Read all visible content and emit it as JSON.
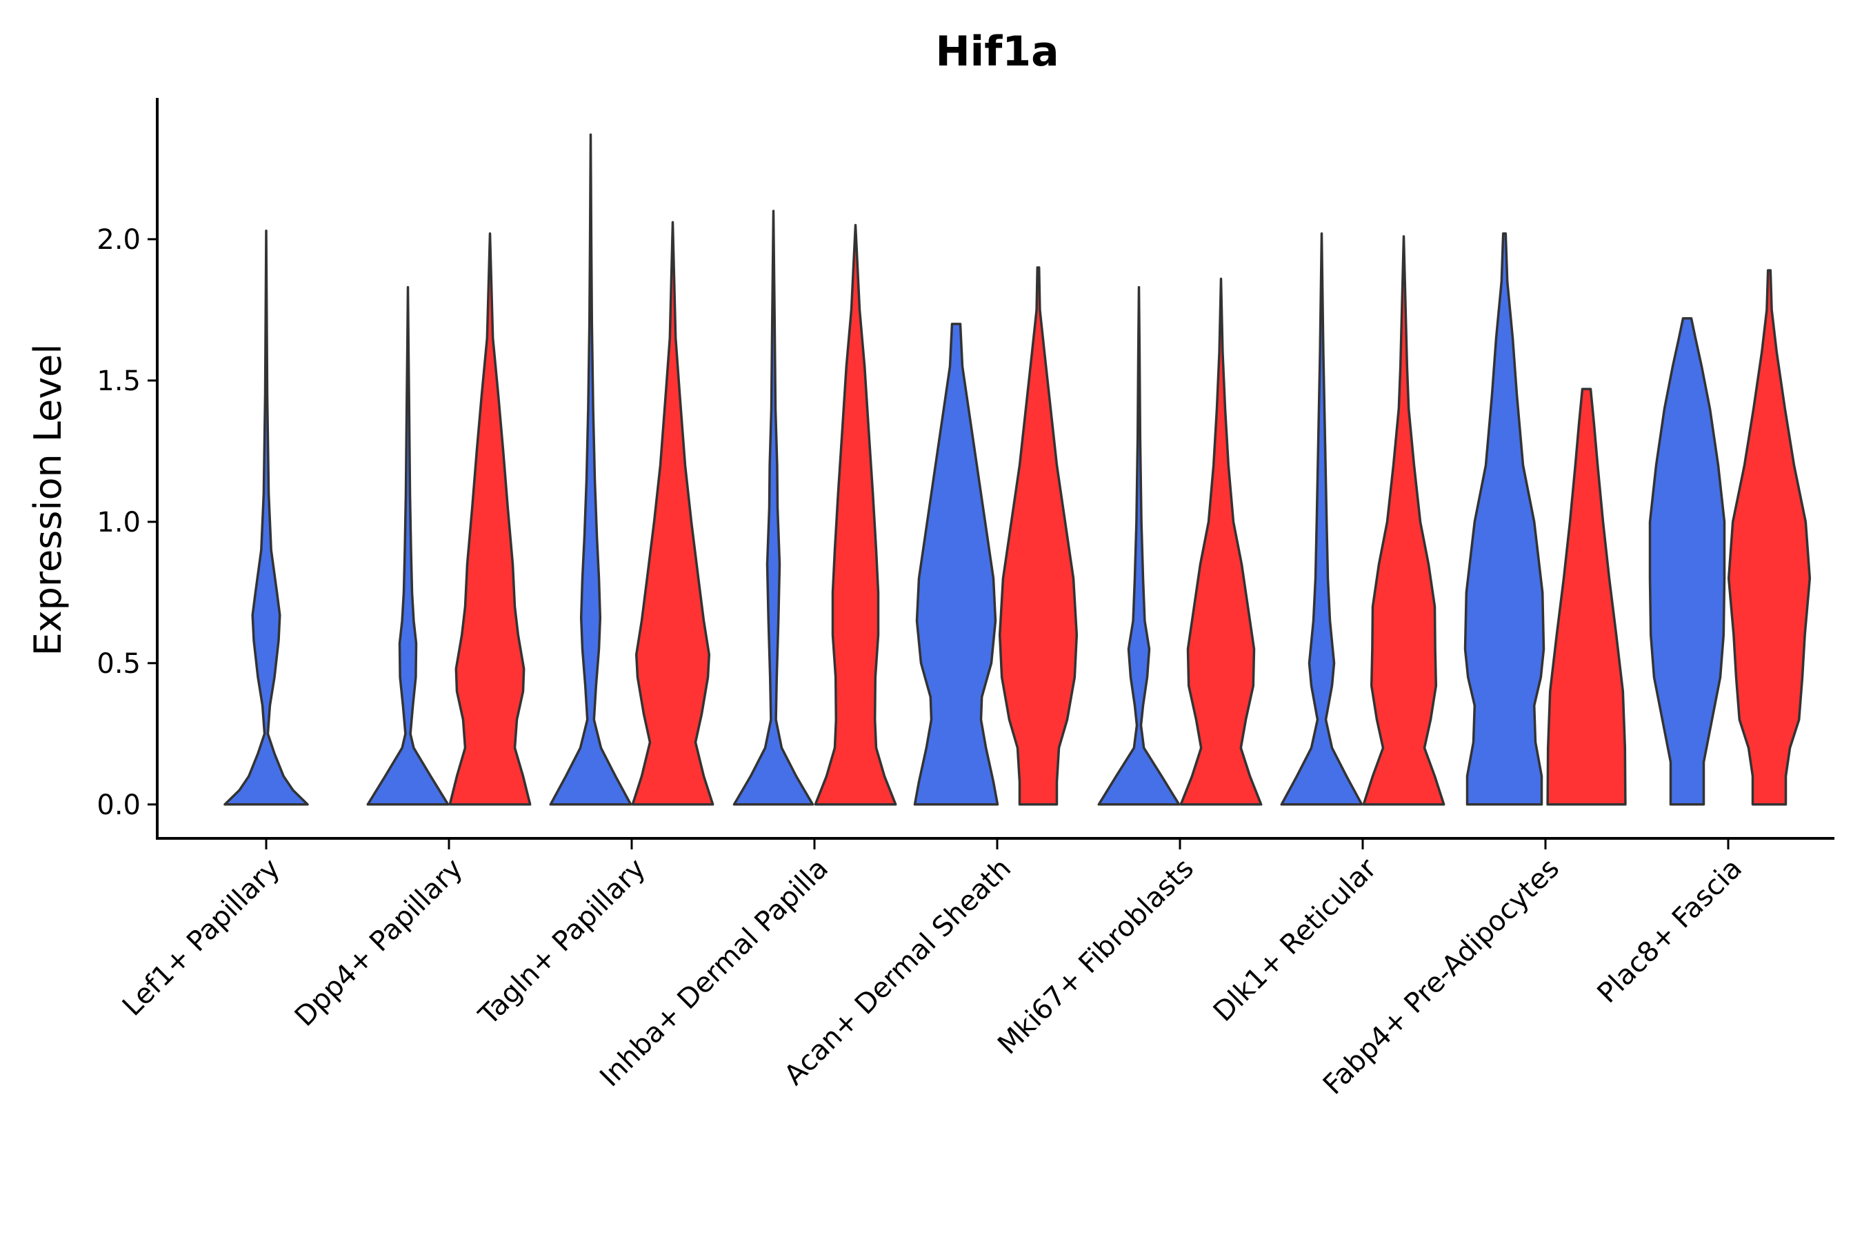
{
  "chart_data": {
    "type": "violin",
    "title": "Hif1a",
    "xlabel": "",
    "ylabel": "Expression Level",
    "ylim": [
      -0.12,
      2.5
    ],
    "yticks": [
      0.0,
      0.5,
      1.0,
      1.5,
      2.0
    ],
    "ytick_labels": [
      "0.0",
      "0.5",
      "1.0",
      "1.5",
      "2.0"
    ],
    "grid": false,
    "legend": "none",
    "colors": {
      "group1": "#4570e8",
      "group2": "#ff3333",
      "outline": "#333333"
    },
    "categories": [
      "Lef1+ Papillary",
      "Dpp4+ Papillary",
      "Tagln+ Papillary",
      "Inhba+ Dermal Papilla",
      "Acan+ Dermal Sheath",
      "Mki67+ Fibroblasts",
      "Dlk1+ Reticular",
      "Fabp4+ Pre-Adipocytes",
      "Plac8+ Fascia"
    ],
    "series": [
      {
        "name": "group1",
        "color": "#4570e8",
        "violins": [
          {
            "category": "Lef1+ Papillary",
            "max": 2.03,
            "profile": [
              [
                0.0,
                1.0
              ],
              [
                0.05,
                0.65
              ],
              [
                0.1,
                0.42
              ],
              [
                0.18,
                0.2
              ],
              [
                0.25,
                0.04
              ],
              [
                0.35,
                0.09
              ],
              [
                0.45,
                0.2
              ],
              [
                0.58,
                0.3
              ],
              [
                0.67,
                0.33
              ],
              [
                0.75,
                0.26
              ],
              [
                0.9,
                0.12
              ],
              [
                1.1,
                0.06
              ],
              [
                1.45,
                0.025
              ],
              [
                1.8,
                0.01
              ],
              [
                2.03,
                0.0
              ]
            ]
          },
          {
            "category": "Dpp4+ Papillary",
            "max": 1.83,
            "profile": [
              [
                0.0,
                0.97
              ],
              [
                0.1,
                0.55
              ],
              [
                0.2,
                0.14
              ],
              [
                0.25,
                0.06
              ],
              [
                0.35,
                0.12
              ],
              [
                0.45,
                0.19
              ],
              [
                0.57,
                0.2
              ],
              [
                0.65,
                0.14
              ],
              [
                0.75,
                0.1
              ],
              [
                0.9,
                0.075
              ],
              [
                1.1,
                0.05
              ],
              [
                1.4,
                0.03
              ],
              [
                1.6,
                0.015
              ],
              [
                1.83,
                0.0
              ]
            ]
          },
          {
            "category": "Tagln+ Papillary",
            "max": 2.37,
            "profile": [
              [
                0.0,
                0.97
              ],
              [
                0.1,
                0.6
              ],
              [
                0.2,
                0.25
              ],
              [
                0.3,
                0.08
              ],
              [
                0.42,
                0.13
              ],
              [
                0.55,
                0.2
              ],
              [
                0.66,
                0.23
              ],
              [
                0.8,
                0.2
              ],
              [
                0.95,
                0.15
              ],
              [
                1.15,
                0.1
              ],
              [
                1.4,
                0.06
              ],
              [
                1.7,
                0.03
              ],
              [
                2.0,
                0.015
              ],
              [
                2.37,
                0.0
              ]
            ]
          },
          {
            "category": "Inhba+ Dermal Papilla",
            "max": 2.1,
            "profile": [
              [
                0.0,
                0.95
              ],
              [
                0.1,
                0.55
              ],
              [
                0.2,
                0.2
              ],
              [
                0.3,
                0.06
              ],
              [
                0.45,
                0.08
              ],
              [
                0.65,
                0.12
              ],
              [
                0.85,
                0.15
              ],
              [
                1.05,
                0.1
              ],
              [
                1.2,
                0.09
              ],
              [
                1.4,
                0.05
              ],
              [
                1.7,
                0.03
              ],
              [
                2.1,
                0.0
              ]
            ]
          },
          {
            "category": "Acan+ Dermal Sheath",
            "max": 1.7,
            "profile": [
              [
                0.0,
                1.0
              ],
              [
                0.08,
                0.9
              ],
              [
                0.2,
                0.72
              ],
              [
                0.3,
                0.6
              ],
              [
                0.38,
                0.62
              ],
              [
                0.5,
                0.85
              ],
              [
                0.65,
                0.95
              ],
              [
                0.8,
                0.9
              ],
              [
                1.0,
                0.7
              ],
              [
                1.2,
                0.5
              ],
              [
                1.4,
                0.3
              ],
              [
                1.55,
                0.15
              ],
              [
                1.7,
                0.1
              ]
            ]
          },
          {
            "category": "Mki67+ Fibroblasts",
            "max": 1.83,
            "profile": [
              [
                0.0,
                0.97
              ],
              [
                0.1,
                0.55
              ],
              [
                0.2,
                0.12
              ],
              [
                0.28,
                0.05
              ],
              [
                0.35,
                0.1
              ],
              [
                0.45,
                0.2
              ],
              [
                0.55,
                0.25
              ],
              [
                0.65,
                0.14
              ],
              [
                0.8,
                0.1
              ],
              [
                1.0,
                0.06
              ],
              [
                1.3,
                0.03
              ],
              [
                1.6,
                0.015
              ],
              [
                1.83,
                0.0
              ]
            ]
          },
          {
            "category": "Dlk1+ Reticular",
            "max": 2.02,
            "profile": [
              [
                0.0,
                0.97
              ],
              [
                0.1,
                0.6
              ],
              [
                0.2,
                0.25
              ],
              [
                0.3,
                0.1
              ],
              [
                0.42,
                0.25
              ],
              [
                0.5,
                0.3
              ],
              [
                0.65,
                0.2
              ],
              [
                0.8,
                0.15
              ],
              [
                1.0,
                0.12
              ],
              [
                1.3,
                0.08
              ],
              [
                1.6,
                0.04
              ],
              [
                2.02,
                0.0
              ]
            ]
          },
          {
            "category": "Fabp4+ Pre-Adipocytes",
            "max": 2.02,
            "profile": [
              [
                0.0,
                0.9
              ],
              [
                0.1,
                0.9
              ],
              [
                0.22,
                0.75
              ],
              [
                0.35,
                0.72
              ],
              [
                0.45,
                0.88
              ],
              [
                0.55,
                0.95
              ],
              [
                0.75,
                0.92
              ],
              [
                1.0,
                0.72
              ],
              [
                1.2,
                0.45
              ],
              [
                1.45,
                0.3
              ],
              [
                1.65,
                0.2
              ],
              [
                1.85,
                0.07
              ],
              [
                2.02,
                0.03
              ]
            ]
          },
          {
            "category": "Plac8+ Fascia",
            "max": 1.72,
            "profile": [
              [
                0.0,
                0.4
              ],
              [
                0.15,
                0.4
              ],
              [
                0.3,
                0.6
              ],
              [
                0.45,
                0.8
              ],
              [
                0.6,
                0.88
              ],
              [
                0.8,
                0.9
              ],
              [
                1.0,
                0.9
              ],
              [
                1.2,
                0.75
              ],
              [
                1.4,
                0.55
              ],
              [
                1.55,
                0.35
              ],
              [
                1.65,
                0.2
              ],
              [
                1.72,
                0.1
              ]
            ]
          }
        ]
      },
      {
        "name": "group2",
        "color": "#ff3333",
        "violins": [
          {
            "category": "Dpp4+ Papillary",
            "max": 2.02,
            "profile": [
              [
                0.0,
                0.97
              ],
              [
                0.1,
                0.8
              ],
              [
                0.2,
                0.6
              ],
              [
                0.3,
                0.65
              ],
              [
                0.4,
                0.8
              ],
              [
                0.48,
                0.82
              ],
              [
                0.6,
                0.68
              ],
              [
                0.7,
                0.6
              ],
              [
                0.85,
                0.55
              ],
              [
                1.05,
                0.43
              ],
              [
                1.25,
                0.32
              ],
              [
                1.45,
                0.2
              ],
              [
                1.65,
                0.07
              ],
              [
                2.02,
                0.0
              ]
            ]
          },
          {
            "category": "Tagln+ Papillary",
            "max": 2.06,
            "profile": [
              [
                0.0,
                0.97
              ],
              [
                0.1,
                0.75
              ],
              [
                0.22,
                0.55
              ],
              [
                0.32,
                0.7
              ],
              [
                0.45,
                0.85
              ],
              [
                0.53,
                0.88
              ],
              [
                0.65,
                0.75
              ],
              [
                0.8,
                0.62
              ],
              [
                1.0,
                0.45
              ],
              [
                1.2,
                0.3
              ],
              [
                1.45,
                0.17
              ],
              [
                1.65,
                0.07
              ],
              [
                2.06,
                0.0
              ]
            ]
          },
          {
            "category": "Inhba+ Dermal Papilla",
            "max": 2.05,
            "profile": [
              [
                0.0,
                0.97
              ],
              [
                0.1,
                0.7
              ],
              [
                0.2,
                0.5
              ],
              [
                0.3,
                0.47
              ],
              [
                0.45,
                0.48
              ],
              [
                0.6,
                0.55
              ],
              [
                0.75,
                0.55
              ],
              [
                0.9,
                0.5
              ],
              [
                1.1,
                0.42
              ],
              [
                1.3,
                0.33
              ],
              [
                1.55,
                0.22
              ],
              [
                1.75,
                0.1
              ],
              [
                2.05,
                0.0
              ]
            ]
          },
          {
            "category": "Acan+ Dermal Sheath",
            "max": 1.9,
            "profile": [
              [
                0.0,
                0.45
              ],
              [
                0.08,
                0.45
              ],
              [
                0.2,
                0.5
              ],
              [
                0.3,
                0.7
              ],
              [
                0.45,
                0.88
              ],
              [
                0.6,
                0.93
              ],
              [
                0.8,
                0.85
              ],
              [
                1.0,
                0.65
              ],
              [
                1.2,
                0.45
              ],
              [
                1.4,
                0.3
              ],
              [
                1.6,
                0.15
              ],
              [
                1.75,
                0.04
              ],
              [
                1.9,
                0.02
              ]
            ]
          },
          {
            "category": "Mki67+ Fibroblasts",
            "max": 1.86,
            "profile": [
              [
                0.0,
                0.97
              ],
              [
                0.1,
                0.7
              ],
              [
                0.2,
                0.48
              ],
              [
                0.3,
                0.6
              ],
              [
                0.42,
                0.78
              ],
              [
                0.55,
                0.8
              ],
              [
                0.7,
                0.65
              ],
              [
                0.85,
                0.5
              ],
              [
                1.0,
                0.3
              ],
              [
                1.2,
                0.18
              ],
              [
                1.4,
                0.1
              ],
              [
                1.6,
                0.04
              ],
              [
                1.86,
                0.0
              ]
            ]
          },
          {
            "category": "Dlk1+ Reticular",
            "max": 2.01,
            "profile": [
              [
                0.0,
                0.97
              ],
              [
                0.1,
                0.75
              ],
              [
                0.2,
                0.5
              ],
              [
                0.3,
                0.65
              ],
              [
                0.42,
                0.78
              ],
              [
                0.55,
                0.76
              ],
              [
                0.7,
                0.75
              ],
              [
                0.85,
                0.6
              ],
              [
                1.0,
                0.4
              ],
              [
                1.2,
                0.25
              ],
              [
                1.4,
                0.12
              ],
              [
                1.55,
                0.08
              ],
              [
                2.01,
                0.0
              ]
            ]
          },
          {
            "category": "Fabp4+ Pre-Adipocytes",
            "max": 1.47,
            "profile": [
              [
                0.0,
                0.94
              ],
              [
                0.2,
                0.93
              ],
              [
                0.4,
                0.88
              ],
              [
                0.6,
                0.72
              ],
              [
                0.8,
                0.55
              ],
              [
                1.0,
                0.4
              ],
              [
                1.2,
                0.27
              ],
              [
                1.35,
                0.18
              ],
              [
                1.47,
                0.1
              ]
            ]
          },
          {
            "category": "Plac8+ Fascia",
            "max": 1.89,
            "profile": [
              [
                0.0,
                0.4
              ],
              [
                0.1,
                0.4
              ],
              [
                0.2,
                0.5
              ],
              [
                0.3,
                0.72
              ],
              [
                0.45,
                0.8
              ],
              [
                0.6,
                0.86
              ],
              [
                0.8,
                0.98
              ],
              [
                1.0,
                0.88
              ],
              [
                1.2,
                0.6
              ],
              [
                1.4,
                0.38
              ],
              [
                1.6,
                0.18
              ],
              [
                1.75,
                0.06
              ],
              [
                1.89,
                0.03
              ]
            ]
          }
        ]
      }
    ]
  }
}
